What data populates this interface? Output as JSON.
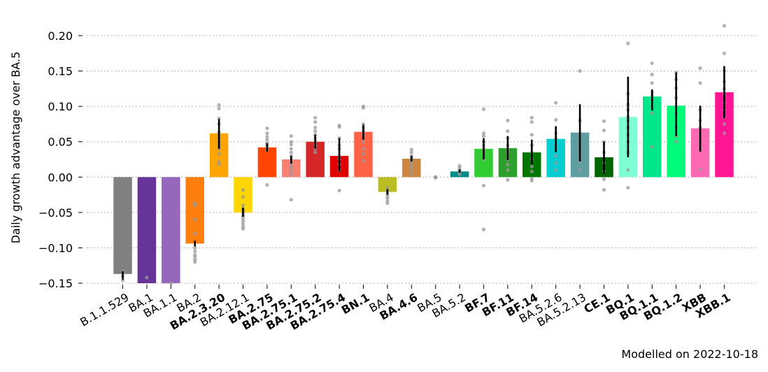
{
  "chart_data": {
    "type": "bar",
    "title": "",
    "xlabel": "",
    "ylabel": "Daily growth advantage over BA.5",
    "ylim": [
      -0.15,
      0.22
    ],
    "yticks": [
      -0.15,
      -0.1,
      -0.05,
      0.0,
      0.05,
      0.1,
      0.15,
      0.2
    ],
    "ytick_labels": [
      "−0.15",
      "−0.10",
      "−0.05",
      "0.00",
      "0.05",
      "0.10",
      "0.15",
      "0.20"
    ],
    "grid": true,
    "footnote": "Modelled on 2022-10-18",
    "categories": [
      "B.1.1.529",
      "BA.1",
      "BA.1.1",
      "BA.2",
      "BA.2.3.20",
      "BA.2.12.1",
      "BA.2.75",
      "BA.2.75.1",
      "BA.2.75.2",
      "BA.2.75.4",
      "BN.1",
      "BA.4",
      "BA.4.6",
      "BA.5",
      "BA.5.2",
      "BF.7",
      "BF.11",
      "BF.14",
      "BA.5.2.6",
      "BA.5.2.13",
      "CE.1",
      "BQ.1",
      "BQ.1.1",
      "BQ.1.2",
      "XBB",
      "XBB.1"
    ],
    "bold": [
      false,
      false,
      false,
      false,
      true,
      false,
      true,
      true,
      true,
      true,
      true,
      false,
      true,
      false,
      false,
      true,
      true,
      true,
      false,
      false,
      true,
      true,
      true,
      true,
      true,
      true
    ],
    "values": [
      -0.137,
      -0.158,
      -0.158,
      -0.094,
      0.062,
      -0.05,
      0.042,
      0.025,
      0.05,
      0.03,
      0.064,
      -0.021,
      0.026,
      0.0,
      0.008,
      0.04,
      0.041,
      0.035,
      0.054,
      0.063,
      0.028,
      0.085,
      0.114,
      0.101,
      0.069,
      0.12
    ],
    "err_low": [
      -0.145,
      null,
      null,
      -0.098,
      0.04,
      -0.056,
      0.036,
      0.019,
      0.04,
      0.008,
      0.053,
      -0.025,
      0.022,
      null,
      0.006,
      0.025,
      0.024,
      0.018,
      0.035,
      0.022,
      0.005,
      0.028,
      0.094,
      0.058,
      0.036,
      0.083
    ],
    "err_high": [
      -0.133,
      null,
      null,
      -0.09,
      0.082,
      -0.043,
      0.048,
      0.03,
      0.06,
      0.055,
      0.074,
      -0.017,
      0.03,
      null,
      0.011,
      0.055,
      0.058,
      0.053,
      0.072,
      0.103,
      0.05,
      0.142,
      0.124,
      0.148,
      0.101,
      0.157
    ],
    "colors": [
      "#808080",
      "#663399",
      "#9467bd",
      "#ff7f0e",
      "#ffa500",
      "#ffd700",
      "#ff4500",
      "#fa8072",
      "#d62728",
      "#e00000",
      "#ff6347",
      "#bcbd22",
      "#cd853f",
      "#808080",
      "#008b8b",
      "#32cd32",
      "#2ca02c",
      "#007800",
      "#00ced1",
      "#5f9ea0",
      "#006400",
      "#7fffd4",
      "#00e68a",
      "#00fa7a",
      "#ff69b4",
      "#ff1493"
    ],
    "samples": [
      [
        -0.14,
        -0.146,
        -0.133
      ],
      [
        -0.142
      ],
      [
        -0.15
      ],
      [
        -0.037,
        -0.04,
        -0.06,
        -0.08,
        -0.1,
        -0.105,
        -0.11,
        -0.113,
        -0.117,
        -0.12
      ],
      [
        0.102,
        0.097,
        0.083,
        0.075,
        0.064,
        0.06,
        0.055,
        0.05,
        0.045,
        0.04,
        0.033,
        0.022,
        0.018
      ],
      [
        -0.018,
        -0.028,
        -0.04,
        -0.046,
        -0.05,
        -0.055,
        -0.058,
        -0.062,
        -0.066,
        -0.07,
        -0.073
      ],
      [
        0.069,
        0.062,
        0.057,
        0.053,
        0.048,
        0.045,
        0.04,
        0.038,
        -0.011
      ],
      [
        0.058,
        0.05,
        0.046,
        0.04,
        0.035,
        0.03,
        0.025,
        0.02,
        0.015,
        0.01,
        0.004,
        -0.032
      ],
      [
        0.084,
        0.078,
        0.07,
        0.065,
        0.06,
        0.055,
        0.05,
        0.045,
        0.04,
        0.035
      ],
      [
        0.073,
        0.071,
        0.055,
        0.045,
        0.04,
        0.03,
        0.025,
        0.018,
        0.01,
        -0.019
      ],
      [
        0.1,
        0.098,
        0.075,
        0.07,
        0.065,
        0.06,
        0.05,
        0.04,
        0.033,
        0.023
      ],
      [
        -0.015,
        -0.02,
        -0.023,
        -0.027,
        -0.03,
        -0.034,
        -0.037
      ],
      [
        0.039,
        0.035,
        0.03,
        0.027,
        0.024,
        0.02,
        0.015,
        0.01,
        0.004
      ],
      [
        0.0,
        0.0,
        -0.001
      ],
      [
        0.016,
        0.013,
        0.01,
        0.008,
        0.006,
        0.004
      ],
      [
        0.096,
        0.062,
        0.058,
        0.05,
        0.045,
        0.04,
        0.035,
        0.025,
        -0.012,
        -0.074
      ],
      [
        0.08,
        0.065,
        0.055,
        0.045,
        0.04,
        0.035,
        0.025,
        0.018,
        0.01,
        -0.004
      ],
      [
        0.084,
        0.078,
        0.06,
        0.045,
        0.035,
        0.025,
        0.015,
        0.008,
        -0.002,
        -0.005
      ],
      [
        0.105,
        0.081,
        0.062,
        0.055,
        0.045,
        0.04,
        0.03,
        0.02,
        0.01
      ],
      [
        0.15,
        0.08,
        0.06,
        0.045,
        0.035,
        0.03,
        0.022,
        0.01
      ],
      [
        0.079,
        0.066,
        0.05,
        0.035,
        0.02,
        0.008,
        -0.003,
        -0.018
      ],
      [
        0.189,
        0.118,
        0.103,
        0.095,
        0.085,
        0.08,
        0.07,
        0.06,
        0.05,
        0.035,
        0.01,
        -0.015
      ],
      [
        0.161,
        0.145,
        0.133,
        0.12,
        0.115,
        0.11,
        0.1,
        0.09,
        0.043
      ],
      [
        0.148,
        0.138,
        0.126,
        0.112,
        0.1,
        0.09,
        0.07,
        0.058,
        0.05
      ],
      [
        0.154,
        0.133,
        0.095,
        0.08,
        0.07,
        0.06,
        0.05,
        0.04,
        0.011
      ],
      [
        0.214,
        0.175,
        0.15,
        0.135,
        0.125,
        0.118,
        0.105,
        0.095,
        0.085,
        0.075,
        0.062
      ]
    ]
  }
}
